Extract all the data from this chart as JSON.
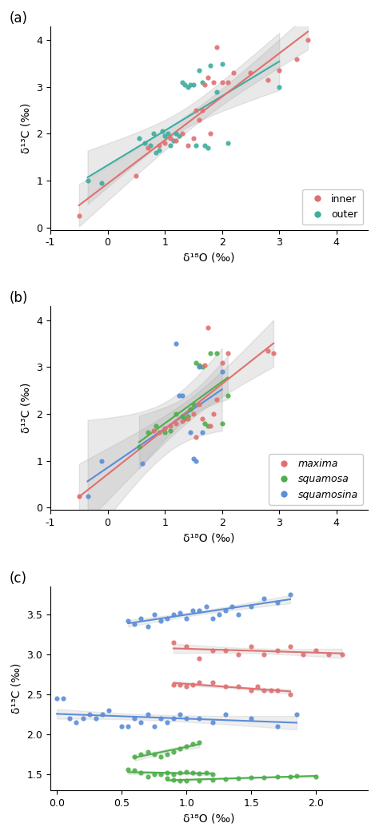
{
  "panel_a": {
    "inner": {
      "x": [
        -0.5,
        0.5,
        0.7,
        0.9,
        1.0,
        1.1,
        1.2,
        1.3,
        1.4,
        1.5,
        1.55,
        1.6,
        1.65,
        1.7,
        1.75,
        1.8,
        1.85,
        1.9,
        2.0,
        2.1,
        2.2,
        2.5,
        2.8,
        3.0,
        3.3,
        3.5
      ],
      "y": [
        0.25,
        1.1,
        1.7,
        1.75,
        1.8,
        1.9,
        1.85,
        2.0,
        1.75,
        1.9,
        2.5,
        2.3,
        2.5,
        3.05,
        3.2,
        2.0,
        3.1,
        3.85,
        3.1,
        3.1,
        3.3,
        3.3,
        3.15,
        3.35,
        3.6,
        4.0
      ],
      "color": "#E07070"
    },
    "outer": {
      "x": [
        -0.35,
        -0.1,
        0.55,
        0.65,
        0.75,
        0.8,
        0.85,
        0.9,
        0.95,
        1.0,
        1.05,
        1.1,
        1.15,
        1.2,
        1.25,
        1.3,
        1.35,
        1.4,
        1.45,
        1.5,
        1.55,
        1.6,
        1.65,
        1.7,
        1.75,
        1.8,
        1.9,
        2.0,
        2.1,
        3.0
      ],
      "y": [
        1.0,
        0.95,
        1.9,
        1.8,
        1.75,
        2.0,
        1.6,
        1.65,
        2.05,
        1.95,
        2.0,
        1.75,
        1.85,
        2.0,
        1.95,
        3.1,
        3.05,
        3.0,
        3.05,
        3.05,
        1.75,
        3.35,
        3.1,
        1.75,
        1.7,
        3.45,
        2.9,
        3.5,
        1.8,
        3.0
      ],
      "color": "#3BAEA0"
    }
  },
  "panel_b": {
    "maxima": {
      "x": [
        -0.5,
        0.8,
        0.9,
        1.0,
        1.1,
        1.2,
        1.3,
        1.4,
        1.5,
        1.55,
        1.6,
        1.65,
        1.7,
        1.75,
        1.8,
        1.85,
        1.9,
        2.0,
        2.1,
        2.8,
        2.9
      ],
      "y": [
        0.25,
        1.65,
        1.6,
        1.7,
        1.75,
        1.8,
        1.85,
        1.9,
        2.0,
        1.5,
        2.2,
        1.9,
        3.05,
        3.85,
        1.75,
        2.0,
        2.3,
        3.1,
        3.3,
        3.35,
        3.3
      ],
      "color": "#E07070"
    },
    "squamosa": {
      "x": [
        0.55,
        0.7,
        0.85,
        1.0,
        1.1,
        1.2,
        1.3,
        1.35,
        1.4,
        1.45,
        1.5,
        1.55,
        1.6,
        1.65,
        1.7,
        1.75,
        1.8,
        1.9,
        2.0,
        2.1
      ],
      "y": [
        1.3,
        1.6,
        1.75,
        1.6,
        1.65,
        2.0,
        1.95,
        1.9,
        1.95,
        2.1,
        2.2,
        3.1,
        3.05,
        3.0,
        1.8,
        1.75,
        3.3,
        3.3,
        1.8,
        2.4
      ],
      "color": "#4DAF4A"
    },
    "squamosina": {
      "x": [
        -0.35,
        -0.1,
        0.6,
        1.2,
        1.25,
        1.3,
        1.45,
        1.5,
        1.55,
        1.6,
        1.65,
        2.0
      ],
      "y": [
        0.25,
        1.0,
        0.95,
        3.5,
        2.4,
        2.4,
        1.6,
        1.05,
        1.0,
        3.0,
        1.6,
        2.9
      ],
      "color": "#5B8DD9"
    }
  },
  "panel_c": {
    "blue_top": {
      "x": [
        0.55,
        0.6,
        0.65,
        0.7,
        0.75,
        0.8,
        0.85,
        0.9,
        0.95,
        1.0,
        1.05,
        1.1,
        1.15,
        1.2,
        1.25,
        1.3,
        1.35,
        1.4,
        1.5,
        1.6,
        1.7,
        1.8
      ],
      "y": [
        3.42,
        3.38,
        3.45,
        3.35,
        3.5,
        3.42,
        3.45,
        3.5,
        3.52,
        3.45,
        3.55,
        3.55,
        3.6,
        3.45,
        3.5,
        3.55,
        3.6,
        3.5,
        3.6,
        3.7,
        3.65,
        3.75
      ]
    },
    "blue_mid": {
      "x": [
        0.0,
        0.05,
        0.1,
        0.15,
        0.2,
        0.25,
        0.3,
        0.35,
        0.4,
        0.5,
        0.55,
        0.6,
        0.65,
        0.7,
        0.75,
        0.8,
        0.85,
        0.9,
        0.95,
        1.0,
        1.1,
        1.2,
        1.3,
        1.5,
        1.7,
        1.85
      ],
      "y": [
        2.45,
        2.45,
        2.2,
        2.15,
        2.2,
        2.25,
        2.2,
        2.25,
        2.3,
        2.1,
        2.1,
        2.2,
        2.15,
        2.25,
        2.1,
        2.2,
        2.15,
        2.2,
        2.25,
        2.2,
        2.2,
        2.15,
        2.25,
        2.2,
        2.1,
        2.25
      ]
    },
    "red_top": {
      "x": [
        0.9,
        1.0,
        1.1,
        1.2,
        1.3,
        1.4,
        1.5,
        1.6,
        1.7,
        1.8,
        1.9,
        2.0,
        2.1,
        2.2
      ],
      "y": [
        3.15,
        3.1,
        2.95,
        3.05,
        3.05,
        3.0,
        3.1,
        3.0,
        3.05,
        3.1,
        3.0,
        3.05,
        3.0,
        3.0
      ]
    },
    "red_mid": {
      "x": [
        0.9,
        0.95,
        1.0,
        1.05,
        1.1,
        1.2,
        1.3,
        1.4,
        1.5,
        1.55,
        1.6,
        1.65,
        1.7,
        1.8
      ],
      "y": [
        2.62,
        2.62,
        2.6,
        2.62,
        2.65,
        2.65,
        2.6,
        2.6,
        2.55,
        2.6,
        2.55,
        2.55,
        2.55,
        2.5
      ]
    },
    "green_top": {
      "x": [
        0.6,
        0.65,
        0.7,
        0.75,
        0.8,
        0.85,
        0.9,
        0.95,
        1.0,
        1.05,
        1.1
      ],
      "y": [
        1.72,
        1.75,
        1.78,
        1.75,
        1.72,
        1.75,
        1.78,
        1.82,
        1.85,
        1.88,
        1.9
      ]
    },
    "green_low1": {
      "x": [
        0.55,
        0.6,
        0.65,
        0.7,
        0.75,
        0.8,
        0.85,
        0.9,
        0.95,
        1.0,
        1.05,
        1.1,
        1.15,
        1.2
      ],
      "y": [
        1.56,
        1.55,
        1.52,
        1.47,
        1.5,
        1.5,
        1.52,
        1.5,
        1.52,
        1.53,
        1.52,
        1.51,
        1.52,
        1.5
      ]
    },
    "green_low2": {
      "x": [
        0.85,
        0.9,
        0.95,
        1.0,
        1.1,
        1.2,
        1.3,
        1.4,
        1.5,
        1.6,
        1.7,
        1.8,
        1.85,
        2.0
      ],
      "y": [
        1.45,
        1.43,
        1.42,
        1.42,
        1.42,
        1.43,
        1.44,
        1.45,
        1.46,
        1.46,
        1.47,
        1.47,
        1.48,
        1.47
      ]
    },
    "colors": {
      "blue": "#5B8DD9",
      "red": "#E07070",
      "green": "#4DAF4A"
    },
    "xlim": [
      -0.05,
      2.4
    ],
    "ylim": [
      1.3,
      3.85
    ],
    "xticks": [
      0.0,
      0.5,
      1.0,
      1.5,
      2.0
    ],
    "yticks": [
      1.5,
      2.0,
      2.5,
      3.0,
      3.5
    ]
  },
  "colors": {
    "inner": "#E07070",
    "outer": "#3BAEA0",
    "maxima": "#E07070",
    "squamosa": "#4DAF4A",
    "squamosina": "#5B8DD9"
  },
  "xlabel": "δ¹⁸O (‰)",
  "ylabel": "δ¹³C (‰)"
}
